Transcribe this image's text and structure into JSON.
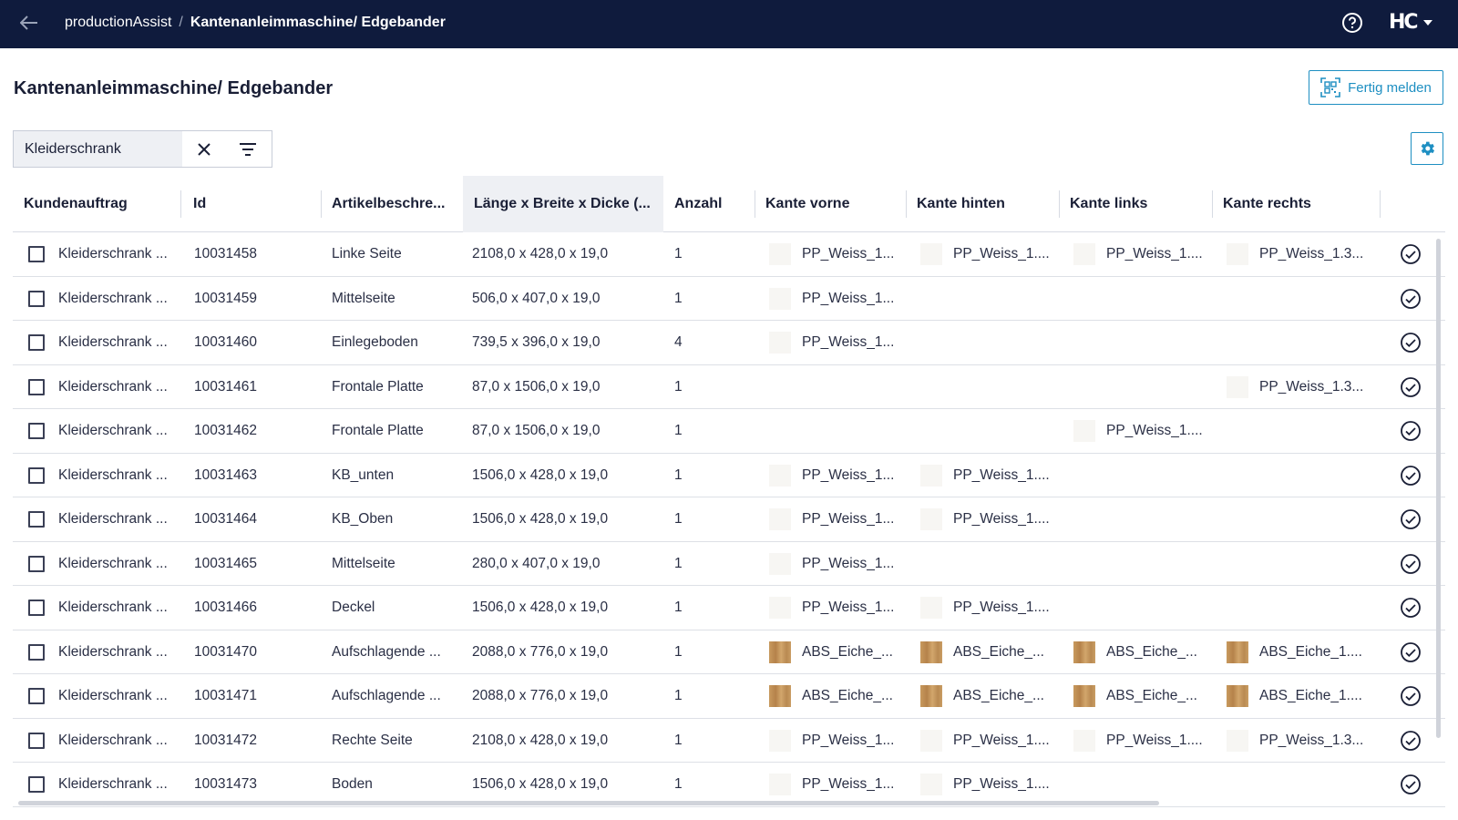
{
  "topbar": {
    "app_name": "productionAssist",
    "separator": "/",
    "current": "Kantenanleimmaschine/ Edgebander",
    "brand": "HC"
  },
  "page": {
    "title": "Kantenanleimmaschine/ Edgebander",
    "fertig_label": "Fertig melden"
  },
  "search": {
    "value": "Kleiderschrank"
  },
  "columns": {
    "kundenauftrag": "Kundenauftrag",
    "id": "Id",
    "artikel": "Artikelbeschre...",
    "masse": "Länge x Breite x Dicke (...",
    "anzahl": "Anzahl",
    "kante_vorne": "Kante vorne",
    "kante_hinten": "Kante hinten",
    "kante_links": "Kante links",
    "kante_rechts": "Kante rechts"
  },
  "colors": {
    "topbar": "#0f1b3d",
    "accent": "#1e8fc2"
  },
  "rows": [
    {
      "auftrag": "Kleiderschrank ...",
      "id": "10031458",
      "artikel": "Linke Seite",
      "masse": "2108,0 x 428,0 x 19,0",
      "anzahl": "1",
      "vorne": "PP_Weiss_1...",
      "vorne_sw": "white",
      "hinten": "PP_Weiss_1....",
      "hinten_sw": "white",
      "links": "PP_Weiss_1....",
      "links_sw": "white",
      "rechts": "PP_Weiss_1.3...",
      "rechts_sw": "white"
    },
    {
      "auftrag": "Kleiderschrank ...",
      "id": "10031459",
      "artikel": "Mittelseite",
      "masse": "506,0 x 407,0 x 19,0",
      "anzahl": "1",
      "vorne": "PP_Weiss_1...",
      "vorne_sw": "white",
      "hinten": "",
      "hinten_sw": "",
      "links": "",
      "links_sw": "",
      "rechts": "",
      "rechts_sw": ""
    },
    {
      "auftrag": "Kleiderschrank ...",
      "id": "10031460",
      "artikel": "Einlegeboden",
      "masse": "739,5 x 396,0 x 19,0",
      "anzahl": "4",
      "vorne": "PP_Weiss_1...",
      "vorne_sw": "white",
      "hinten": "",
      "hinten_sw": "",
      "links": "",
      "links_sw": "",
      "rechts": "",
      "rechts_sw": ""
    },
    {
      "auftrag": "Kleiderschrank ...",
      "id": "10031461",
      "artikel": "Frontale Platte",
      "masse": "87,0 x 1506,0 x 19,0",
      "anzahl": "1",
      "vorne": "",
      "vorne_sw": "",
      "hinten": "",
      "hinten_sw": "",
      "links": "",
      "links_sw": "",
      "rechts": "PP_Weiss_1.3...",
      "rechts_sw": "white"
    },
    {
      "auftrag": "Kleiderschrank ...",
      "id": "10031462",
      "artikel": "Frontale Platte",
      "masse": "87,0 x 1506,0 x 19,0",
      "anzahl": "1",
      "vorne": "",
      "vorne_sw": "",
      "hinten": "",
      "hinten_sw": "",
      "links": "PP_Weiss_1....",
      "links_sw": "white",
      "rechts": "",
      "rechts_sw": ""
    },
    {
      "auftrag": "Kleiderschrank ...",
      "id": "10031463",
      "artikel": "KB_unten",
      "masse": "1506,0 x 428,0 x 19,0",
      "anzahl": "1",
      "vorne": "PP_Weiss_1...",
      "vorne_sw": "white",
      "hinten": "PP_Weiss_1....",
      "hinten_sw": "white",
      "links": "",
      "links_sw": "",
      "rechts": "",
      "rechts_sw": ""
    },
    {
      "auftrag": "Kleiderschrank ...",
      "id": "10031464",
      "artikel": "KB_Oben",
      "masse": "1506,0 x 428,0 x 19,0",
      "anzahl": "1",
      "vorne": "PP_Weiss_1...",
      "vorne_sw": "white",
      "hinten": "PP_Weiss_1....",
      "hinten_sw": "white",
      "links": "",
      "links_sw": "",
      "rechts": "",
      "rechts_sw": ""
    },
    {
      "auftrag": "Kleiderschrank ...",
      "id": "10031465",
      "artikel": "Mittelseite",
      "masse": "280,0 x 407,0 x 19,0",
      "anzahl": "1",
      "vorne": "PP_Weiss_1...",
      "vorne_sw": "white",
      "hinten": "",
      "hinten_sw": "",
      "links": "",
      "links_sw": "",
      "rechts": "",
      "rechts_sw": ""
    },
    {
      "auftrag": "Kleiderschrank ...",
      "id": "10031466",
      "artikel": "Deckel",
      "masse": "1506,0 x 428,0 x 19,0",
      "anzahl": "1",
      "vorne": "PP_Weiss_1...",
      "vorne_sw": "white",
      "hinten": "PP_Weiss_1....",
      "hinten_sw": "white",
      "links": "",
      "links_sw": "",
      "rechts": "",
      "rechts_sw": ""
    },
    {
      "auftrag": "Kleiderschrank ...",
      "id": "10031470",
      "artikel": "Aufschlagende ...",
      "masse": "2088,0 x 776,0 x 19,0",
      "anzahl": "1",
      "vorne": "ABS_Eiche_...",
      "vorne_sw": "oak",
      "hinten": "ABS_Eiche_...",
      "hinten_sw": "oak",
      "links": "ABS_Eiche_...",
      "links_sw": "oak",
      "rechts": "ABS_Eiche_1....",
      "rechts_sw": "oak"
    },
    {
      "auftrag": "Kleiderschrank ...",
      "id": "10031471",
      "artikel": "Aufschlagende ...",
      "masse": "2088,0 x 776,0 x 19,0",
      "anzahl": "1",
      "vorne": "ABS_Eiche_...",
      "vorne_sw": "oak",
      "hinten": "ABS_Eiche_...",
      "hinten_sw": "oak",
      "links": "ABS_Eiche_...",
      "links_sw": "oak",
      "rechts": "ABS_Eiche_1....",
      "rechts_sw": "oak"
    },
    {
      "auftrag": "Kleiderschrank ...",
      "id": "10031472",
      "artikel": "Rechte Seite",
      "masse": "2108,0 x 428,0 x 19,0",
      "anzahl": "1",
      "vorne": "PP_Weiss_1...",
      "vorne_sw": "white",
      "hinten": "PP_Weiss_1....",
      "hinten_sw": "white",
      "links": "PP_Weiss_1....",
      "links_sw": "white",
      "rechts": "PP_Weiss_1.3...",
      "rechts_sw": "white"
    },
    {
      "auftrag": "Kleiderschrank ...",
      "id": "10031473",
      "artikel": "Boden",
      "masse": "1506,0 x 428,0 x 19,0",
      "anzahl": "1",
      "vorne": "PP_Weiss_1...",
      "vorne_sw": "white",
      "hinten": "PP_Weiss_1....",
      "hinten_sw": "white",
      "links": "",
      "links_sw": "",
      "rechts": "",
      "rechts_sw": ""
    }
  ]
}
